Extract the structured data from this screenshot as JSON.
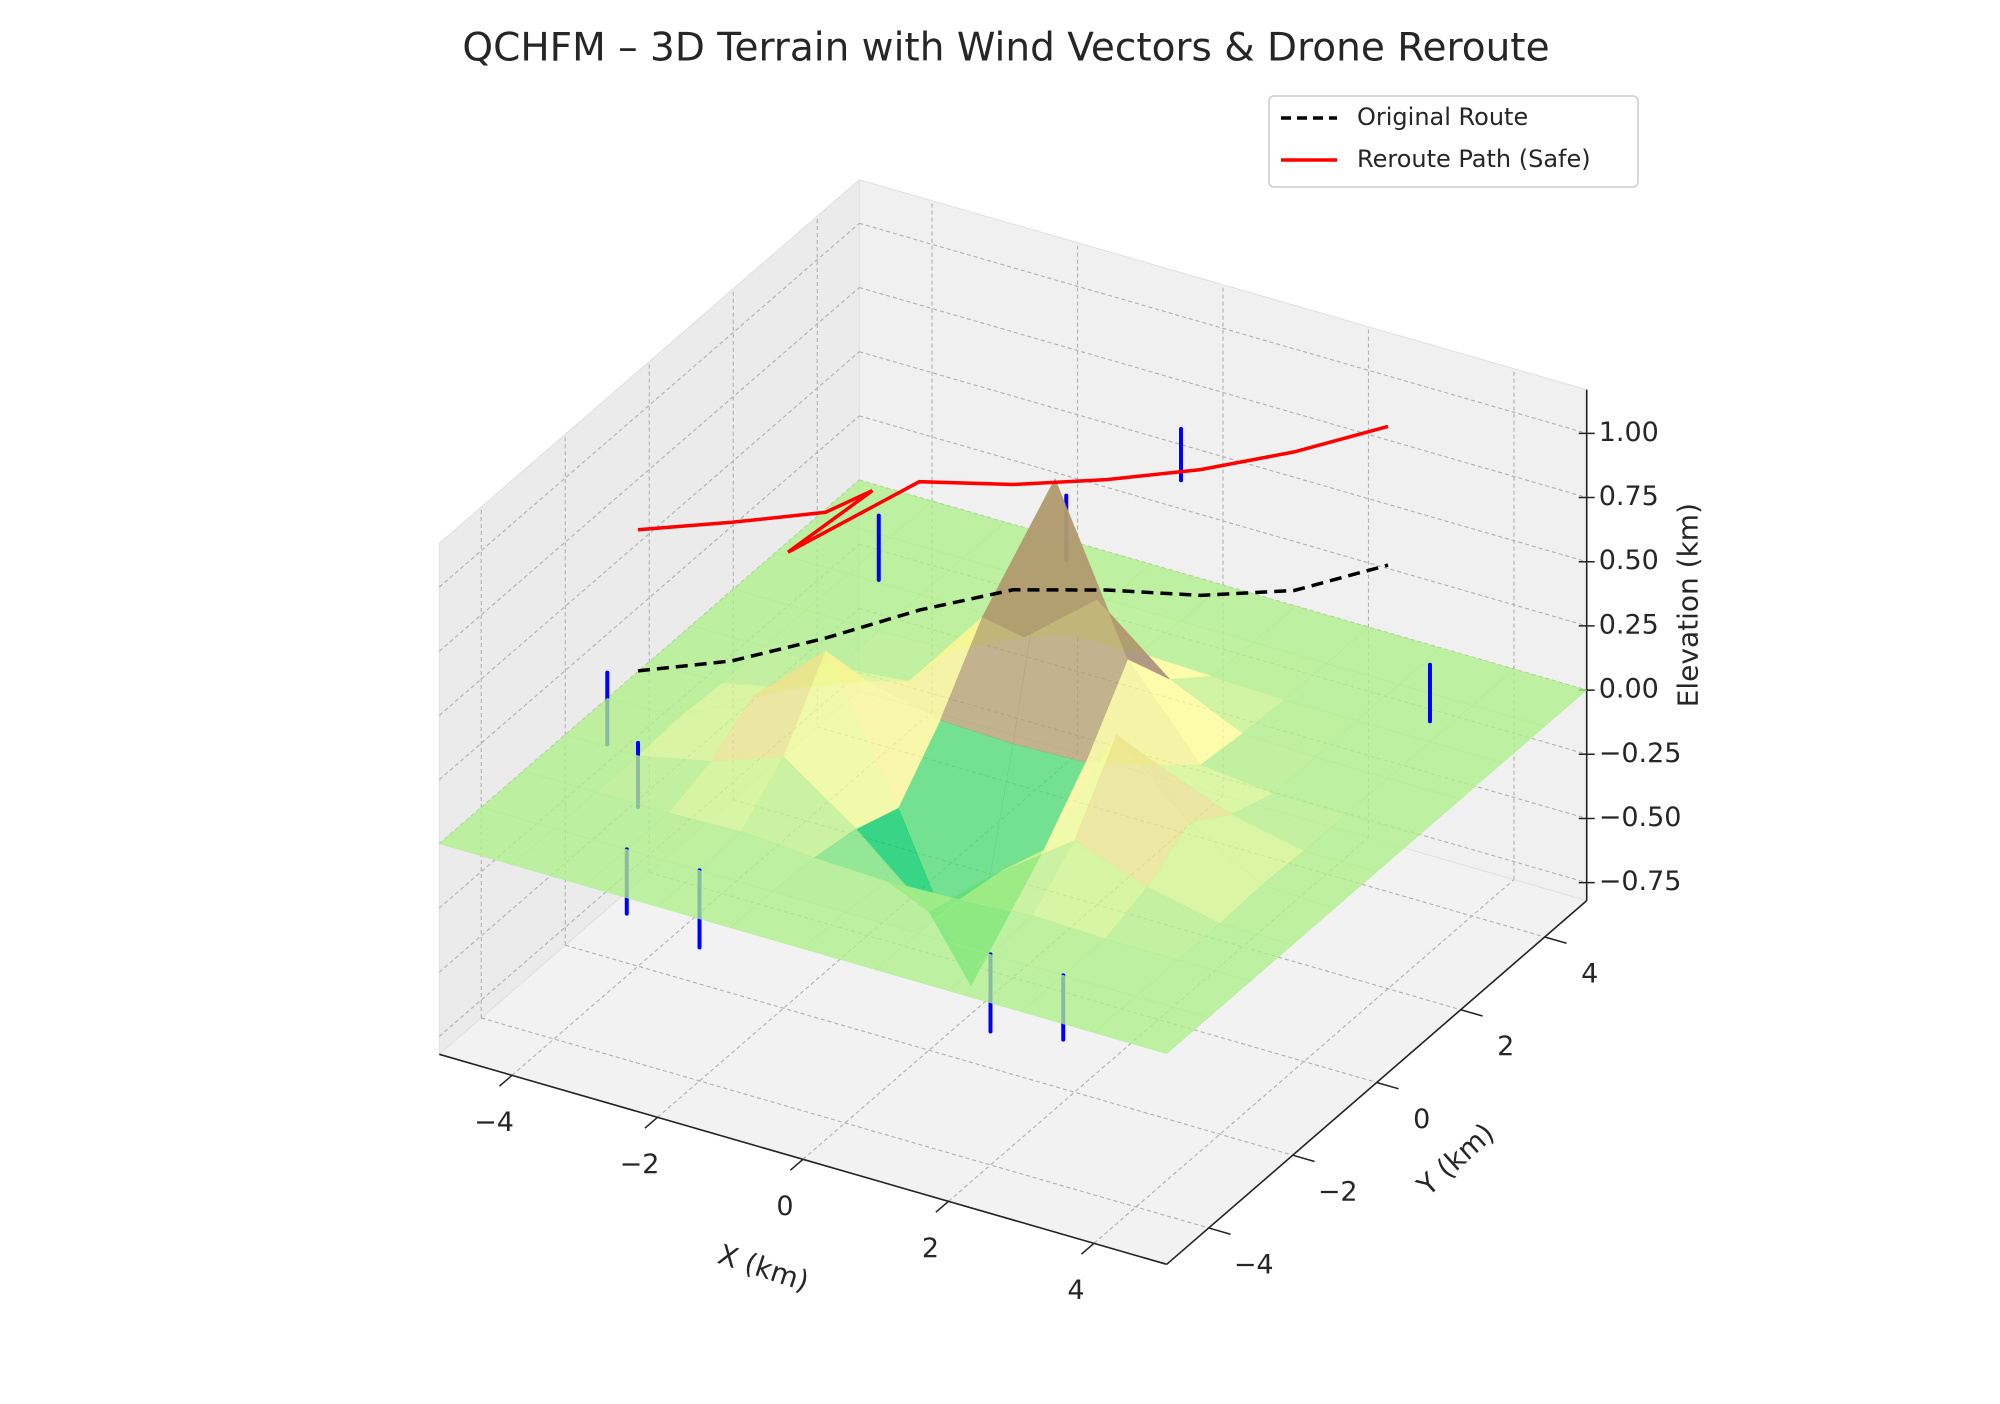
{
  "chart_data": {
    "type": "surface3d",
    "title": "QCHFM – 3D Terrain with Wind Vectors & Drone Reroute",
    "x_label": "X (km)",
    "y_label": "Y (km)",
    "z_label": "Elevation (km)",
    "xlim": [
      -5,
      5
    ],
    "ylim": [
      -5,
      5
    ],
    "zlim": [
      -0.82,
      1.17
    ],
    "xticks": [
      {
        "value": -4,
        "label": "−4"
      },
      {
        "value": -2,
        "label": "−2"
      },
      0,
      2,
      4
    ],
    "yticks": [
      {
        "value": -4,
        "label": "−4"
      },
      {
        "value": -2,
        "label": "−2"
      },
      0,
      2,
      4
    ],
    "zticks": [
      {
        "value": -0.75,
        "label": "−0.75"
      },
      {
        "value": -0.5,
        "label": "−0.50"
      },
      {
        "value": -0.25,
        "label": "−0.25"
      },
      {
        "value": 0,
        "label": "0.00"
      },
      0.25,
      {
        "value": 0.5,
        "label": "0.50"
      },
      0.75,
      {
        "value": 1,
        "label": "1.00"
      }
    ],
    "grid": true,
    "legend": "upper right",
    "surface": {
      "colormap": "terrain",
      "alpha": 0.78,
      "x": [
        -5,
        -4,
        -3,
        -2,
        -1,
        0,
        1,
        2,
        3,
        4,
        5
      ],
      "y": [
        -5,
        -4,
        -3,
        -2,
        -1,
        0,
        1,
        2,
        3,
        4,
        5
      ],
      "z": [
        [
          0,
          0,
          0,
          0,
          0,
          0,
          0,
          0,
          0,
          0,
          0
        ],
        [
          0,
          0,
          0,
          0,
          0,
          0,
          0,
          0,
          0,
          0,
          0
        ],
        [
          0,
          0,
          0,
          0.01,
          -0.01,
          -0.02,
          -0.01,
          0.01,
          0,
          0,
          0
        ],
        [
          0,
          0,
          0.06,
          0.16,
          -0.04,
          -0.28,
          -0.04,
          0.16,
          0.06,
          0,
          0
        ],
        [
          0,
          0.01,
          0.17,
          0.43,
          -0.1,
          -0.71,
          -0.1,
          0.43,
          0.17,
          0.01,
          0
        ],
        [
          0,
          0,
          0.06,
          0.17,
          0.1,
          0.09,
          0.1,
          0.17,
          0.06,
          0,
          0
        ],
        [
          0,
          0,
          0,
          0.03,
          0.36,
          0.98,
          0.36,
          0.03,
          0,
          0,
          0
        ],
        [
          0,
          0,
          0,
          0.01,
          0.14,
          0.37,
          0.14,
          0.01,
          0,
          0,
          0
        ],
        [
          0,
          0,
          0,
          0,
          0.01,
          0.02,
          0.01,
          0,
          0,
          0,
          0
        ],
        [
          0,
          0,
          0,
          0,
          0,
          0,
          0,
          0,
          0,
          0,
          0
        ],
        [
          0,
          0,
          0,
          0,
          0,
          0,
          0,
          0,
          0,
          0,
          0
        ]
      ]
    },
    "wind": {
      "color": "#0000ff",
      "x": [
        -5,
        -4,
        -3,
        -2,
        2,
        3,
        -3,
        0,
        4,
        -1
      ],
      "y": [
        -1,
        -2,
        -4,
        -4,
        -4,
        -4,
        2,
        4,
        3,
        3
      ],
      "z": [
        0.1,
        0.05,
        0.0,
        0.0,
        0.0,
        0.0,
        0.45,
        0.75,
        0.3,
        0.55
      ],
      "dz": [
        -0.28,
        -0.25,
        -0.25,
        -0.3,
        -0.3,
        -0.25,
        -0.25,
        -0.2,
        -0.22,
        -0.25
      ]
    },
    "series": [
      {
        "name": "Original Route",
        "color": "#000000",
        "style": "dashed",
        "x": [
          -4,
          -3,
          -2,
          -1,
          0,
          1,
          2,
          3,
          4
        ],
        "y": [
          -2,
          -1.5,
          -1,
          -0.5,
          0,
          0.5,
          1,
          1.5,
          2
        ],
        "z": [
          0.33,
          0.38,
          0.48,
          0.6,
          0.69,
          0.7,
          0.69,
          0.72,
          0.83
        ]
      },
      {
        "name": "Reroute Path (Safe)",
        "color": "#ff0000",
        "style": "solid",
        "x": [
          -4,
          -3,
          -2,
          -1.5,
          -2.4,
          -1,
          0,
          1,
          2,
          3,
          4
        ],
        "y": [
          -2,
          -1.5,
          -1,
          -0.75,
          -1.2,
          -0.5,
          0,
          0.5,
          1,
          1.5,
          2
        ],
        "z": [
          0.88,
          0.92,
          0.97,
          1.06,
          0.81,
          1.1,
          1.1,
          1.13,
          1.18,
          1.26,
          1.37
        ]
      }
    ]
  }
}
